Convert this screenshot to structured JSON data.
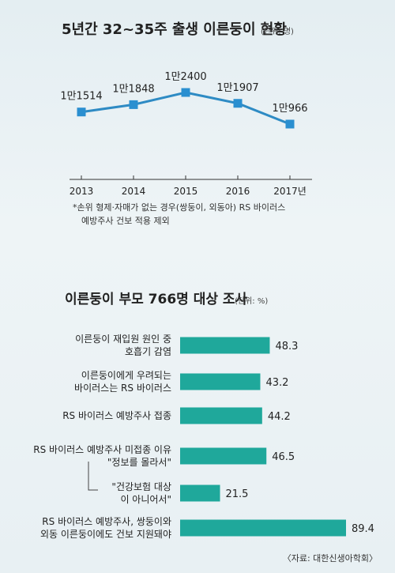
{
  "chart_data": [
    {
      "type": "line",
      "title": "5년간 32~35주 출생 이른둥이 현황",
      "unit": "(단위: 명)",
      "categories": [
        "2013",
        "2014",
        "2015",
        "2016",
        "2017년"
      ],
      "values": [
        11514,
        11848,
        12400,
        11907,
        10966
      ],
      "value_labels": [
        "1만1514",
        "1만1848",
        "1만2400",
        "1만1907",
        "1만966"
      ],
      "note": [
        "*손위 형제·자매가 없는 경우(쌍둥이, 외동아) RS 바이러스",
        "예방주사 건보 적용 제외"
      ],
      "colors": {
        "line": "#2e8bc4",
        "marker": "#2a8fd0"
      }
    },
    {
      "type": "bar",
      "title": "이른둥이 부모 766명 대상 조사",
      "unit": "(단위: %)",
      "rows": [
        {
          "label": [
            "이른둥이 재입원 원인 중",
            "호흡기 감염"
          ],
          "value": 48.3,
          "value_label": "48.3"
        },
        {
          "label": [
            "이른둥이에게 우려되는",
            "바이러스는 RS 바이러스"
          ],
          "value": 43.2,
          "value_label": "43.2"
        },
        {
          "label": [
            "RS 바이러스 예방주사 접종"
          ],
          "value": 44.2,
          "value_label": "44.2"
        },
        {
          "label": [
            "RS 바이러스 예방주사 미접종 이유",
            "\"정보를 몰라서\""
          ],
          "value": 46.5,
          "value_label": "46.5"
        },
        {
          "label": [
            "\"건강보험 대상",
            "이 아니어서\""
          ],
          "value": 21.5,
          "value_label": "21.5"
        },
        {
          "label": [
            "RS 바이러스 예방주사, 쌍둥이와",
            "외동 이른둥이에도 건보 지원돼야"
          ],
          "value": 89.4,
          "value_label": "89.4"
        }
      ],
      "source": "〈자료: 대한신생아학회〉",
      "colors": {
        "bar": "#1fa89b"
      }
    }
  ]
}
